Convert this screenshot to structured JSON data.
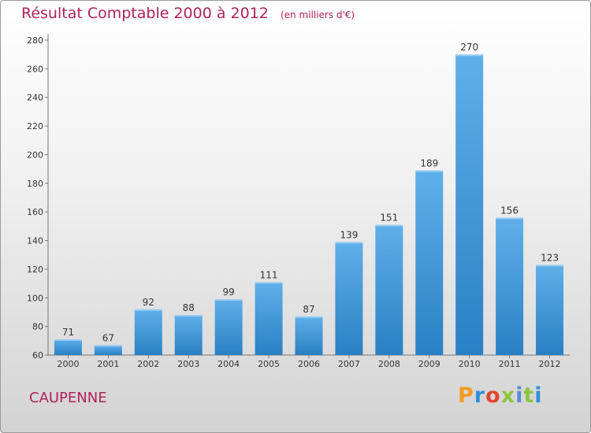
{
  "header": {
    "title": "Résultat Comptable 2000 à 2012",
    "subtitle": "(en milliers d'€)"
  },
  "footer": {
    "commune": "CAUPENNE",
    "brand": "Proxiti"
  },
  "colors": {
    "bar_light": "#5fb0ea",
    "bar_dark": "#2a80c4",
    "title": "#b0225a",
    "axis": "#777777",
    "text": "#333333"
  },
  "chart_data": {
    "type": "bar",
    "title": "Résultat Comptable 2000 à 2012",
    "subtitle": "(en milliers d'€)",
    "xlabel": "",
    "ylabel": "",
    "categories": [
      "2000",
      "2001",
      "2002",
      "2003",
      "2004",
      "2005",
      "2006",
      "2007",
      "2008",
      "2009",
      "2010",
      "2011",
      "2012"
    ],
    "values": [
      71,
      67,
      92,
      88,
      99,
      111,
      87,
      139,
      151,
      189,
      270,
      156,
      123
    ],
    "ylim": [
      60,
      280
    ],
    "yticks": [
      60,
      80,
      100,
      120,
      140,
      160,
      180,
      200,
      220,
      240,
      260,
      280
    ],
    "grid": false,
    "data_labels": true
  }
}
